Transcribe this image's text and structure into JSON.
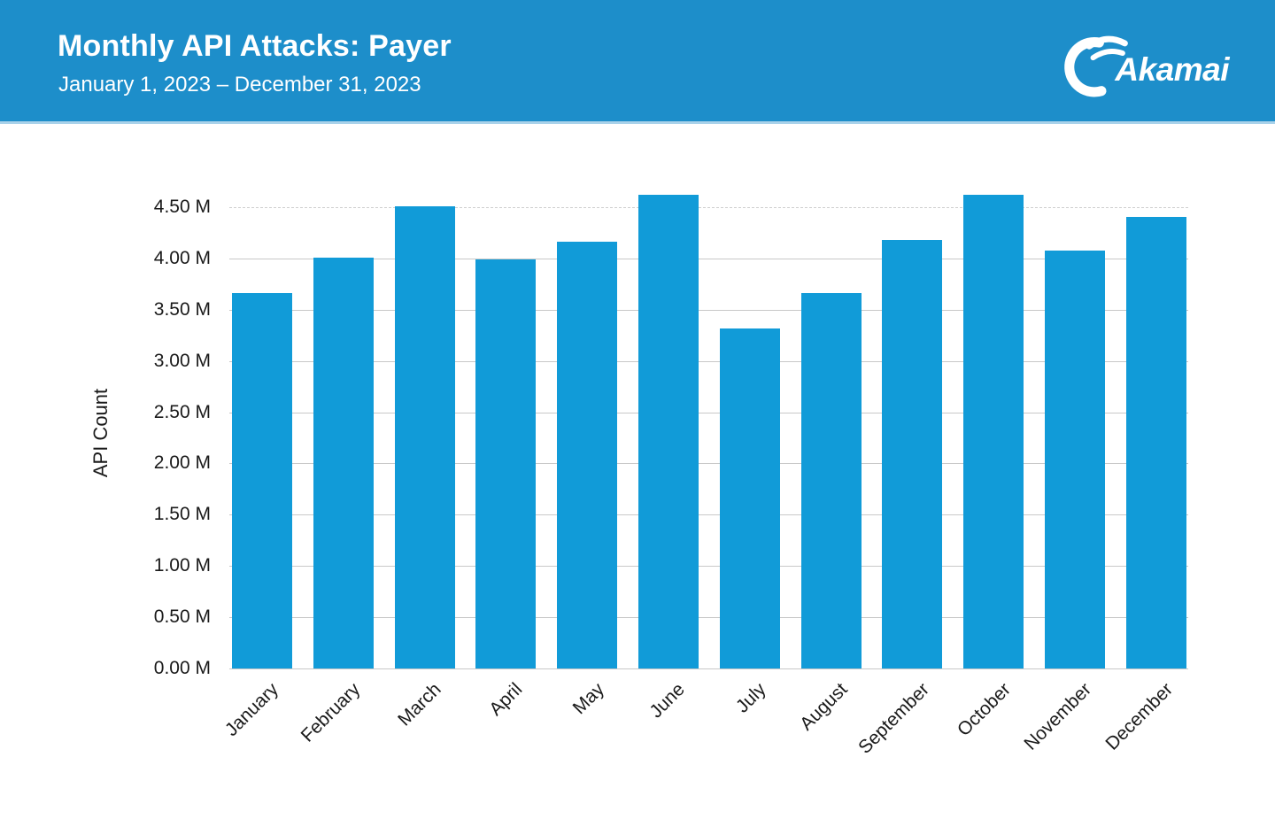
{
  "header": {
    "title": "Monthly API Attacks: Payer",
    "subtitle": "January 1, 2023 – December 31, 2023",
    "logo_text": "Akamai",
    "logo_icon": "akamai-swoosh-icon",
    "bg_color": "#1D8ECA",
    "accent_strip_color": "#A9D2EA",
    "text_color": "#FFFFFF"
  },
  "chart_data": {
    "type": "bar",
    "title": "Monthly API Attacks: Payer",
    "subtitle": "January 1, 2023 – December 31, 2023",
    "categories": [
      "January",
      "February",
      "March",
      "April",
      "May",
      "June",
      "July",
      "August",
      "September",
      "October",
      "November",
      "December"
    ],
    "values": [
      3.66,
      4.01,
      4.51,
      3.99,
      4.16,
      4.62,
      3.32,
      3.66,
      4.18,
      4.62,
      4.08,
      4.4
    ],
    "unit": "M",
    "xlabel": "",
    "ylabel": "API Count",
    "ylim": [
      0,
      4.75
    ],
    "ytick_step": 0.5,
    "ytick_suffix": " M",
    "ytick_labels": [
      "0.00 M",
      "0.50 M",
      "1.00 M",
      "1.50 M",
      "2.00 M",
      "2.50 M",
      "3.00 M",
      "3.50 M",
      "4.00 M",
      "4.50 M"
    ],
    "grid": "horizontal",
    "legend": "none",
    "bar_color": "#119BD8",
    "gridline_color": "#C8C8C8",
    "tick_label_color": "#1A1A1A"
  }
}
